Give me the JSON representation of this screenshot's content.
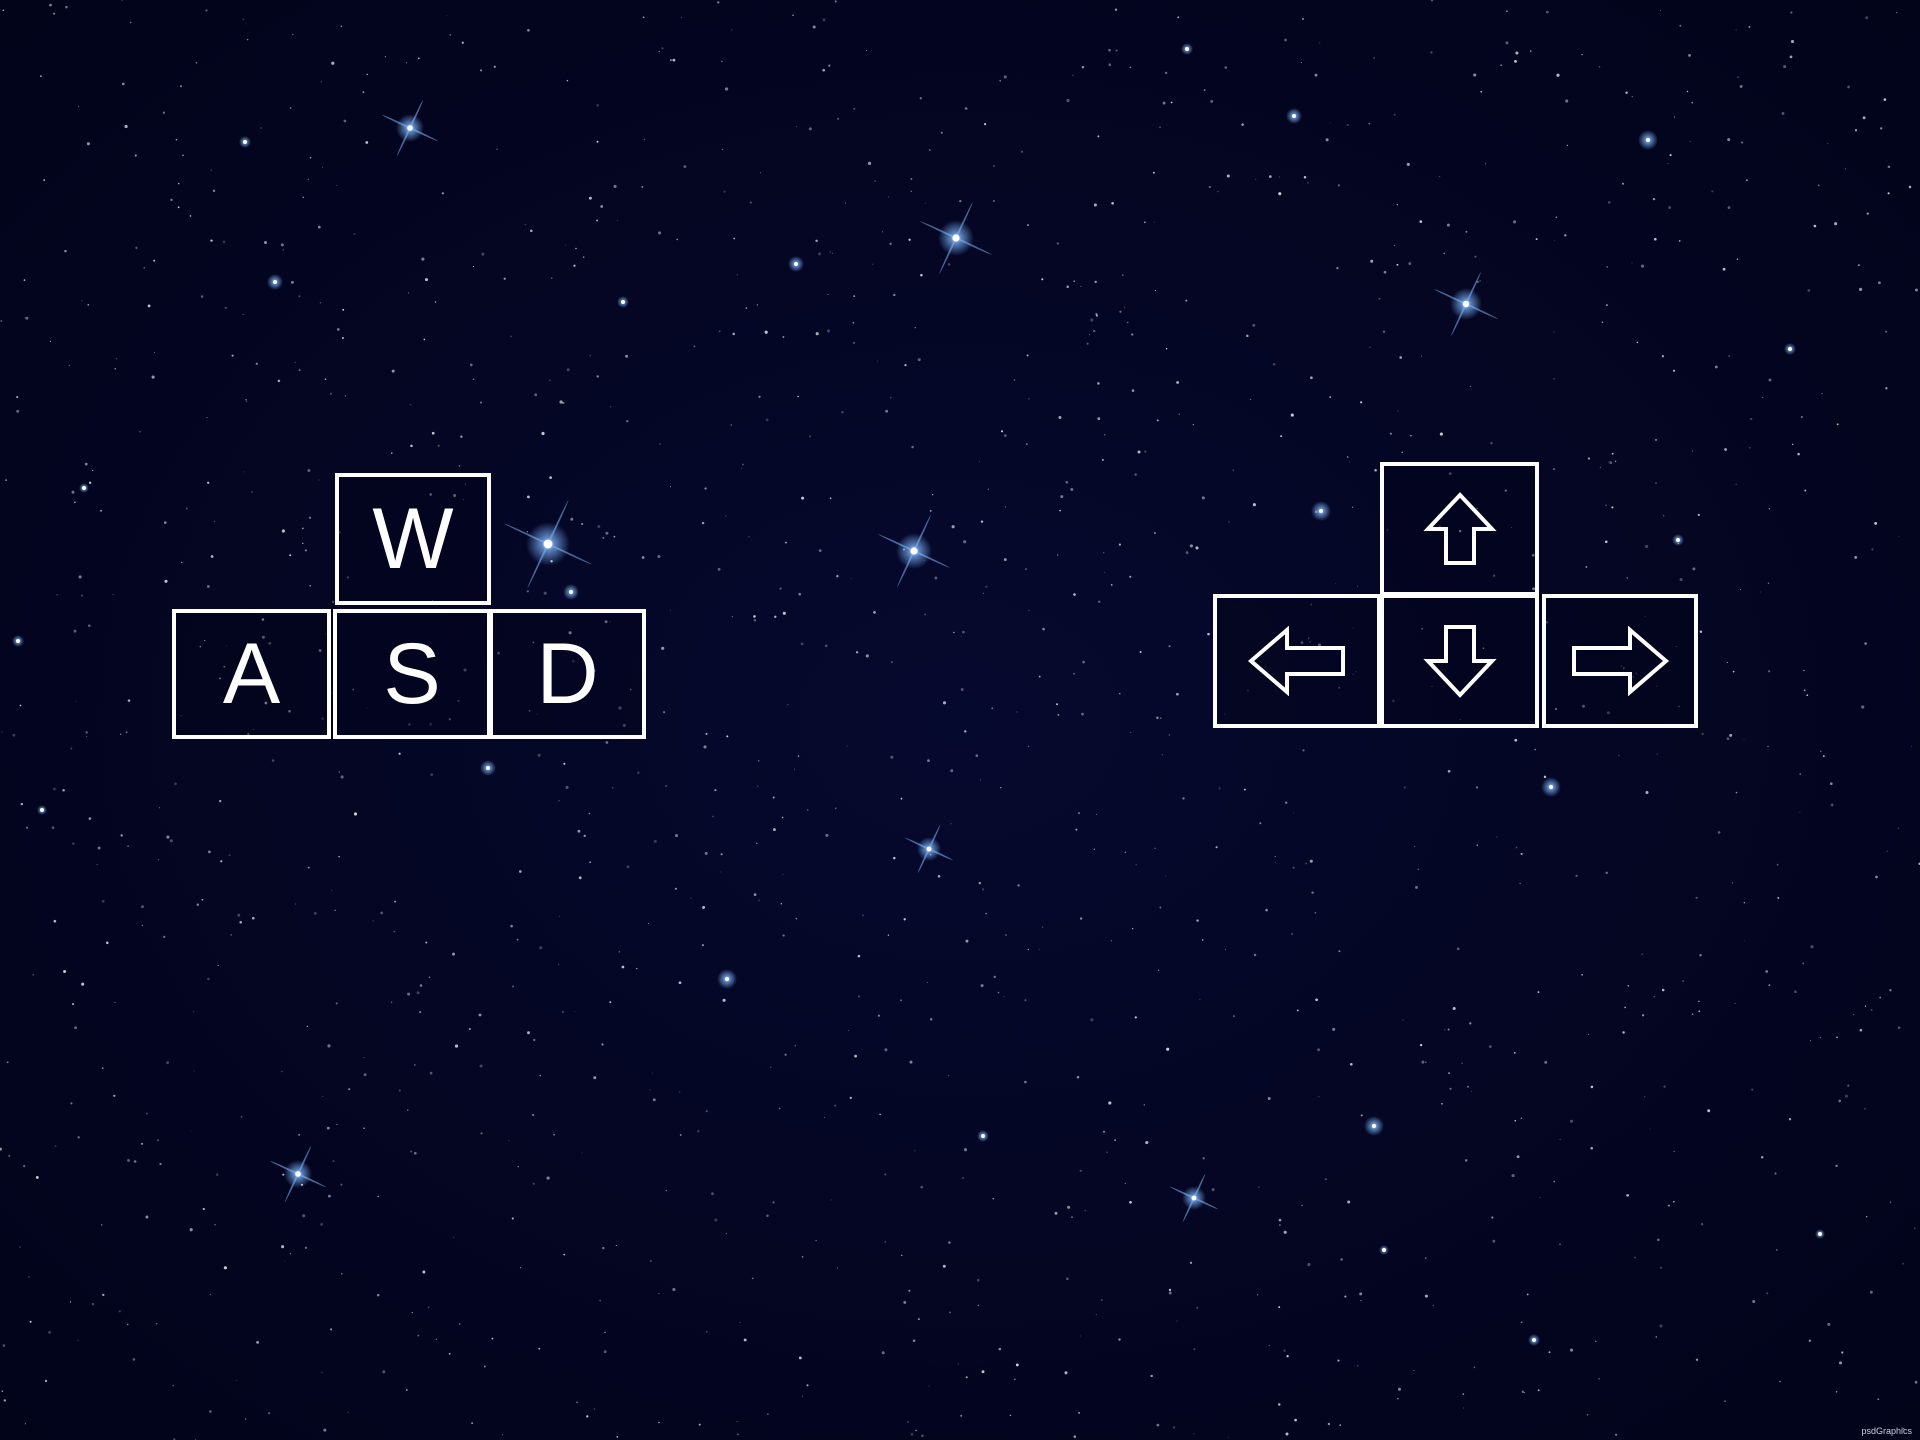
{
  "scene": {
    "background_color": "#03051a",
    "star_color": "#ffffff",
    "glow_color": "#7fb8ff"
  },
  "wasd_cluster": {
    "keys": {
      "w": {
        "label": "W",
        "action": "move-up"
      },
      "a": {
        "label": "A",
        "action": "move-left"
      },
      "s": {
        "label": "S",
        "action": "move-down"
      },
      "d": {
        "label": "D",
        "action": "move-right"
      }
    }
  },
  "arrow_cluster": {
    "keys": {
      "up": {
        "icon": "arrow-up-icon",
        "action": "move-up"
      },
      "left": {
        "icon": "arrow-left-icon",
        "action": "move-left"
      },
      "down": {
        "icon": "arrow-down-icon",
        "action": "move-down"
      },
      "right": {
        "icon": "arrow-right-icon",
        "action": "move-right"
      }
    }
  },
  "watermark": {
    "brand": "psdGraphics"
  }
}
